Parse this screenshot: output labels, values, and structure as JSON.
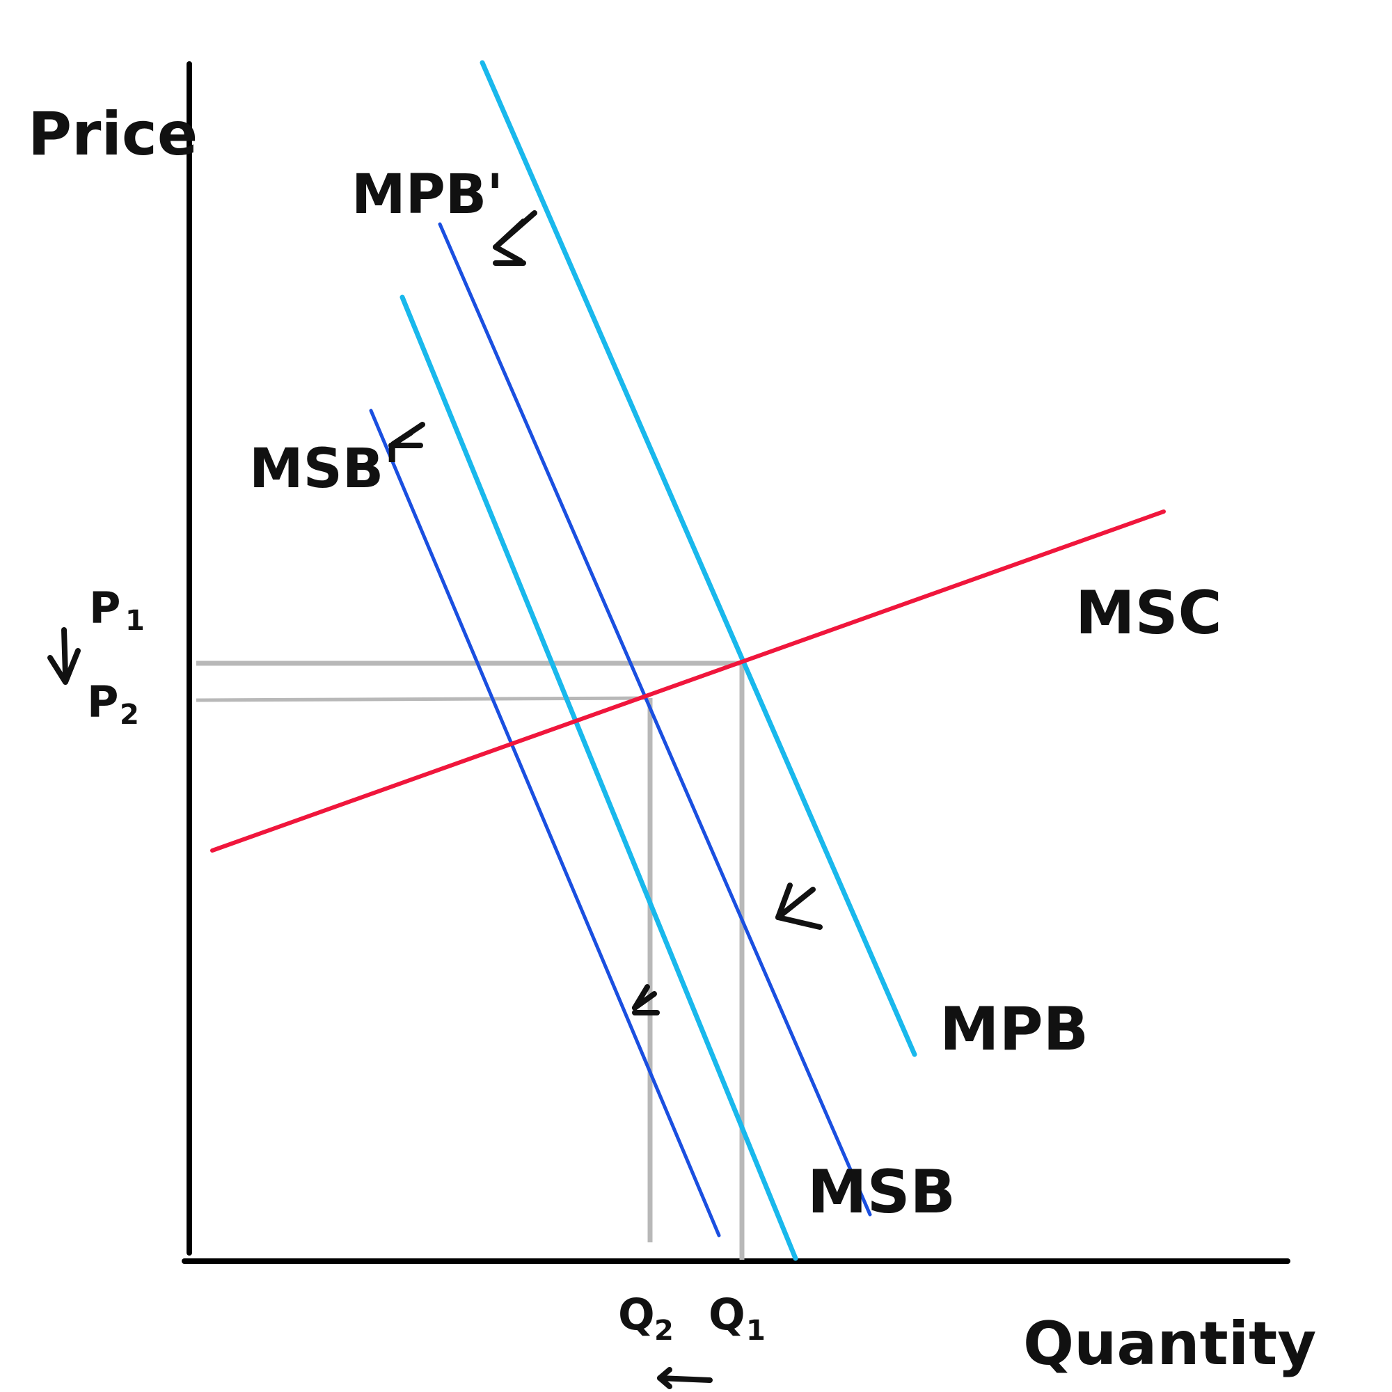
{
  "axes": {
    "y_label": "Price",
    "x_label": "Quantity"
  },
  "curves": {
    "mpb": {
      "label": "MPB",
      "color": "#19b8ec"
    },
    "mpb_prime": {
      "label": "MPB'",
      "color": "#19b8ec"
    },
    "msb": {
      "label": "MSB",
      "color": "#1a4fe0"
    },
    "msb_prime": {
      "label": "MSB'",
      "color": "#1a4fe0"
    },
    "msc": {
      "label": "MSC",
      "color": "#f0163c"
    }
  },
  "price_labels": {
    "p1": "P",
    "p1_sub": "1",
    "p2": "P",
    "p2_sub": "2"
  },
  "quantity_labels": {
    "q1": "Q",
    "q1_sub": "1",
    "q2": "Q",
    "q2_sub": "2"
  },
  "guide_color": "#b8b8b8"
}
